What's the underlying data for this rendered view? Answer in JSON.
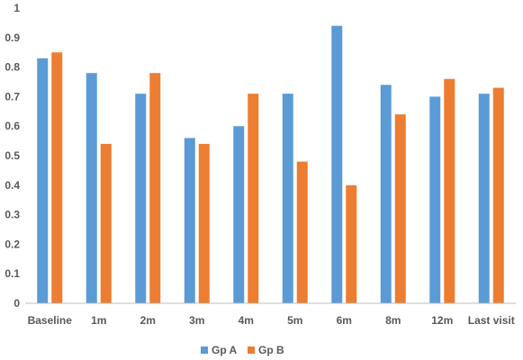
{
  "chart_data": {
    "type": "bar",
    "categories": [
      "Baseline",
      "1m",
      "2m",
      "3m",
      "4m",
      "5m",
      "6m",
      "8m",
      "12m",
      "Last visit"
    ],
    "series": [
      {
        "name": "Gp A",
        "color": "#5B9BD5",
        "values": [
          0.83,
          0.78,
          0.71,
          0.56,
          0.6,
          0.71,
          0.94,
          0.74,
          0.7,
          0.71
        ]
      },
      {
        "name": "Gp B",
        "color": "#ED7D31",
        "values": [
          0.85,
          0.54,
          0.78,
          0.54,
          0.71,
          0.48,
          0.4,
          0.64,
          0.76,
          0.73
        ]
      }
    ],
    "yticks": [
      "0",
      "0.1",
      "0.2",
      "0.3",
      "0.4",
      "0.5",
      "0.6",
      "0.7",
      "0.8",
      "0.9",
      "1"
    ],
    "ylim": [
      0,
      1
    ],
    "grid": false,
    "legend": "bottom"
  }
}
